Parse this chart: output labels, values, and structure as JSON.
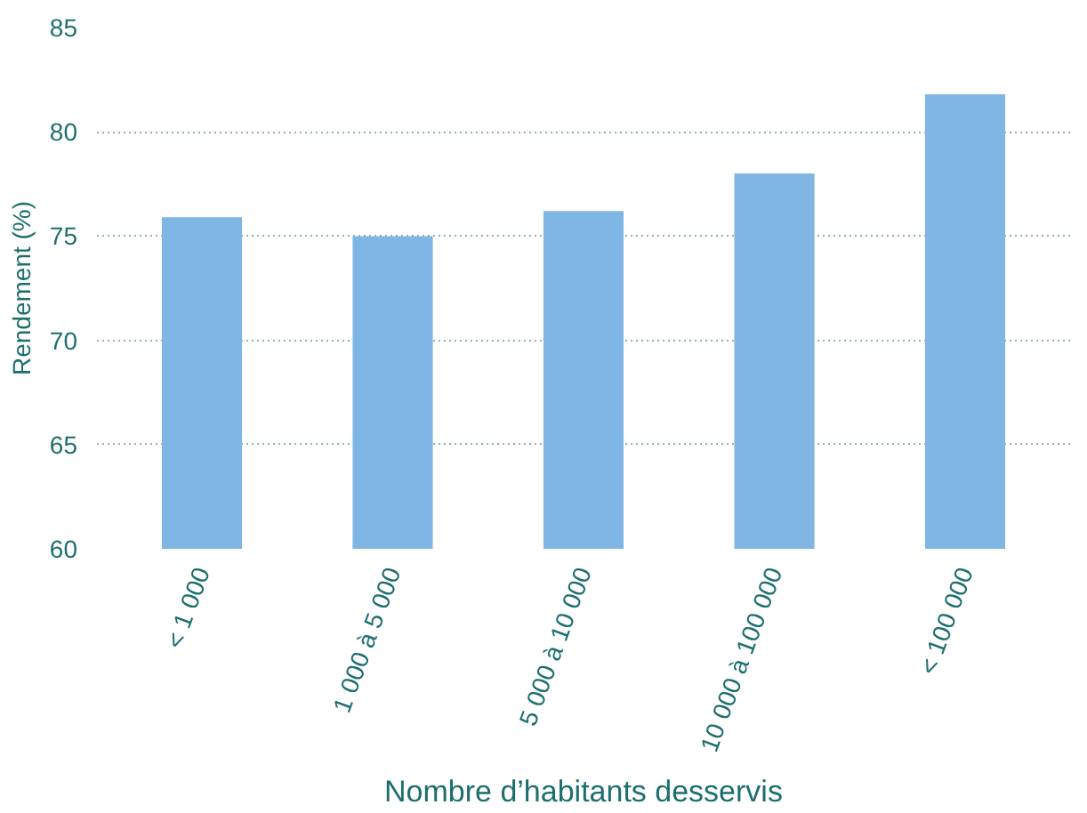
{
  "chart_data": {
    "type": "bar",
    "xlabel": "Nombre d’habitants desservis",
    "ylabel": "Rendement (%)",
    "categories": [
      "< 1 000",
      "1 000 à 5 000",
      "5 000 à 10 000",
      "10 000 à 100 000",
      "< 100 000"
    ],
    "values": [
      75.9,
      75,
      76.2,
      78,
      81.8
    ],
    "color": "#7fb6e3",
    "ylim": [
      60,
      85
    ],
    "yticks": [
      60,
      65,
      70,
      75,
      80,
      85
    ],
    "grid": "y"
  }
}
